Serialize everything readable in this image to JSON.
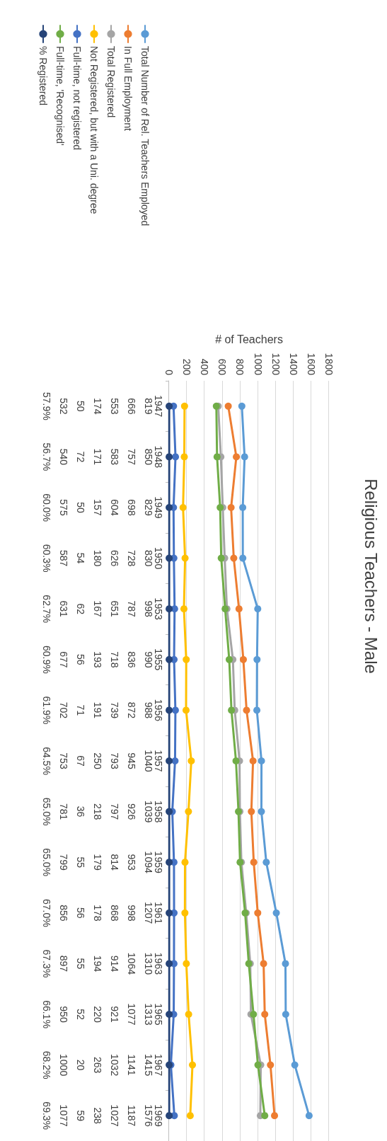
{
  "chart_data": {
    "type": "line",
    "title": "Religious Teachers - Male",
    "xlabel": "# of Teachers",
    "orientation": "horizontal",
    "categories": [
      "1947",
      "1948",
      "1949",
      "1950",
      "1953",
      "1955",
      "1956",
      "1957",
      "1958",
      "1959",
      "1961",
      "1963",
      "1965",
      "1967",
      "1969"
    ],
    "series": [
      {
        "name": "Total Number of Rel. Teachers Employed",
        "color": "#5b9bd5",
        "values": [
          819,
          850,
          829,
          830,
          998,
          990,
          988,
          1040,
          1039,
          1094,
          1207,
          1310,
          1313,
          1415,
          1576
        ]
      },
      {
        "name": "In Full Employment",
        "color": "#ed7d31",
        "values": [
          666,
          757,
          698,
          728,
          787,
          836,
          872,
          945,
          926,
          953,
          998,
          1064,
          1077,
          1141,
          1187
        ]
      },
      {
        "name": "Total Registered",
        "color": "#a5a5a5",
        "values": [
          553,
          583,
          604,
          626,
          651,
          718,
          739,
          793,
          797,
          814,
          868,
          914,
          921,
          1032,
          1027
        ]
      },
      {
        "name": "Not Registered, but with a Uni. degree",
        "color": "#ffc000",
        "values": [
          174,
          171,
          157,
          180,
          167,
          193,
          191,
          250,
          218,
          179,
          178,
          194,
          220,
          263,
          238
        ]
      },
      {
        "name": "Full-time, not registered",
        "color": "#4472c4",
        "values": [
          50,
          72,
          50,
          54,
          62,
          56,
          71,
          67,
          36,
          55,
          56,
          55,
          52,
          20,
          59
        ]
      },
      {
        "name": "Full-time, 'Recognised'",
        "color": "#70ad47",
        "values": [
          532,
          540,
          575,
          587,
          631,
          677,
          702,
          753,
          781,
          799,
          856,
          897,
          950,
          1000,
          1077
        ]
      },
      {
        "name": "% Registered",
        "color": "#264478",
        "values": [
          0.579,
          0.567,
          0.6,
          0.603,
          0.627,
          0.609,
          0.619,
          0.645,
          0.65,
          0.65,
          0.67,
          0.673,
          0.661,
          0.682,
          0.693
        ],
        "value_labels": [
          "57.9%",
          "56.7%",
          "60.0%",
          "60.3%",
          "62.7%",
          "60.9%",
          "61.9%",
          "64.5%",
          "65.0%",
          "65.0%",
          "67.0%",
          "67.3%",
          "66.1%",
          "68.2%",
          "69.3%"
        ]
      }
    ],
    "xlim": [
      0,
      1800
    ],
    "xticks": [
      0,
      200,
      400,
      600,
      800,
      1000,
      1200,
      1400,
      1600,
      1800
    ],
    "grid": "x",
    "legend": "top left",
    "marker": "circle",
    "line_style": "solid",
    "data_labels": true
  }
}
